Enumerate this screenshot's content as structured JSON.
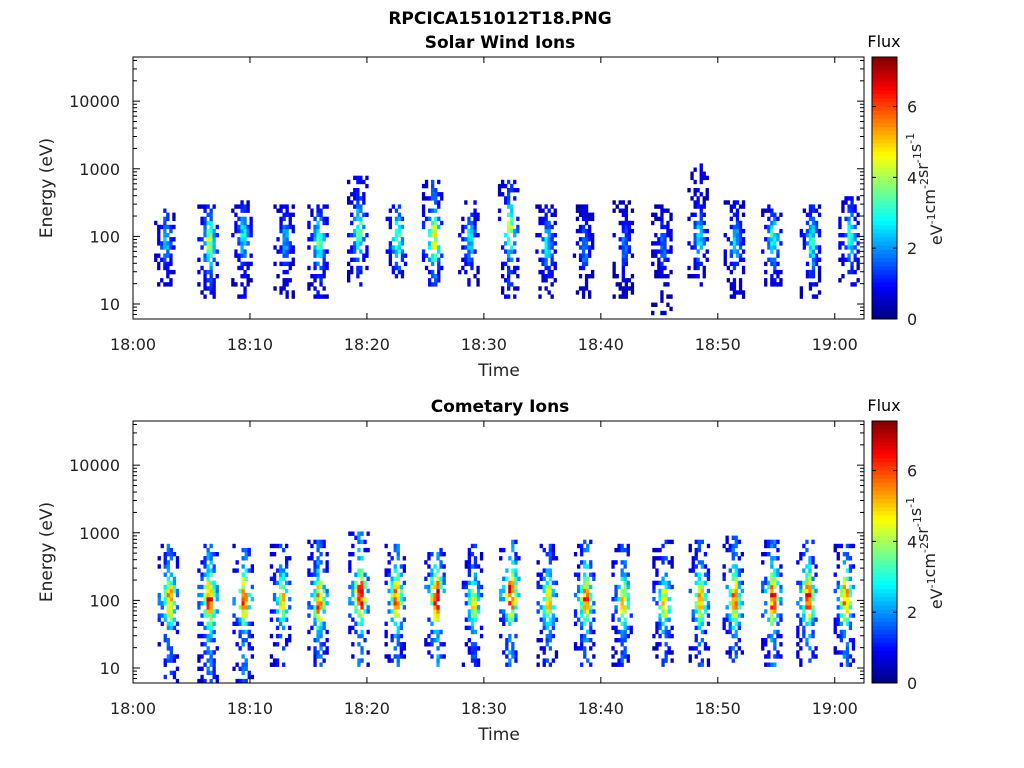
{
  "figure": {
    "title": "RPCICA151012T18.PNG"
  },
  "chart_data": [
    {
      "type": "heatmap",
      "title": "Solar Wind Ions",
      "xlabel": "Time",
      "ylabel": "Energy (eV)",
      "x_ticks": [
        "18:00",
        "18:10",
        "18:20",
        "18:30",
        "18:40",
        "18:50",
        "19:00"
      ],
      "xlim": [
        "18:00",
        "19:02.5"
      ],
      "y_scale": "log",
      "y_ticks": [
        "10",
        "100",
        "1000",
        "10000"
      ],
      "ylim": [
        6,
        45000
      ],
      "colorbar": {
        "label_top": "Flux",
        "units": "eV-1cm-2sr-1s-1",
        "ticks": [
          "0",
          "2",
          "4",
          "6"
        ],
        "range": [
          0,
          7.4
        ],
        "colormap": "jet"
      },
      "bursts": [
        {
          "t": 2.7,
          "lo": 18,
          "hi": 230,
          "peak": 85,
          "p": 2.4
        },
        {
          "t": 6.4,
          "lo": 12,
          "hi": 250,
          "peak": 75,
          "p": 3.9
        },
        {
          "t": 9.3,
          "lo": 12,
          "hi": 290,
          "peak": 95,
          "p": 2.8
        },
        {
          "t": 12.9,
          "lo": 12,
          "hi": 260,
          "peak": 85,
          "p": 2.2
        },
        {
          "t": 15.8,
          "lo": 12,
          "hi": 260,
          "peak": 80,
          "p": 3.3
        },
        {
          "t": 19.2,
          "lo": 18,
          "hi": 700,
          "peak": 110,
          "p": 3.6
        },
        {
          "t": 22.5,
          "lo": 18,
          "hi": 250,
          "peak": 90,
          "p": 3.7
        },
        {
          "t": 25.6,
          "lo": 18,
          "hi": 600,
          "peak": 85,
          "p": 4.7
        },
        {
          "t": 28.7,
          "lo": 18,
          "hi": 320,
          "peak": 85,
          "p": 2.5
        },
        {
          "t": 32.1,
          "lo": 12,
          "hi": 600,
          "peak": 120,
          "p": 4.2
        },
        {
          "t": 35.3,
          "lo": 12,
          "hi": 260,
          "peak": 70,
          "p": 2.6
        },
        {
          "t": 38.5,
          "lo": 12,
          "hi": 250,
          "peak": 65,
          "p": 2.0
        },
        {
          "t": 41.9,
          "lo": 12,
          "hi": 300,
          "peak": 70,
          "p": 1.8
        },
        {
          "t": 45.2,
          "lo": 7,
          "hi": 260,
          "peak": 70,
          "p": 1.8
        },
        {
          "t": 48.3,
          "lo": 18,
          "hi": 1000,
          "peak": 90,
          "p": 2.6
        },
        {
          "t": 51.4,
          "lo": 12,
          "hi": 320,
          "peak": 75,
          "p": 2.5
        },
        {
          "t": 54.6,
          "lo": 18,
          "hi": 260,
          "peak": 85,
          "p": 3.1
        },
        {
          "t": 57.9,
          "lo": 12,
          "hi": 260,
          "peak": 75,
          "p": 3.0
        },
        {
          "t": 61.2,
          "lo": 18,
          "hi": 360,
          "peak": 90,
          "p": 3.0
        }
      ]
    },
    {
      "type": "heatmap",
      "title": "Cometary Ions",
      "xlabel": "Time",
      "ylabel": "Energy (eV)",
      "x_ticks": [
        "18:00",
        "18:10",
        "18:20",
        "18:30",
        "18:40",
        "18:50",
        "19:00"
      ],
      "xlim": [
        "18:00",
        "19:02.5"
      ],
      "y_scale": "log",
      "y_ticks": [
        "10",
        "100",
        "1000",
        "10000"
      ],
      "ylim": [
        6,
        45000
      ],
      "colorbar": {
        "label_top": "Flux",
        "units": "eV-1cm-2sr-1s-1",
        "ticks": [
          "0",
          "2",
          "4",
          "6"
        ],
        "range": [
          0,
          7.4
        ],
        "colormap": "jet"
      },
      "bursts": [
        {
          "t": 3.0,
          "lo": 6,
          "hi": 650,
          "peak": 95,
          "p": 5.8
        },
        {
          "t": 6.4,
          "lo": 6,
          "hi": 650,
          "peak": 95,
          "p": 6.3
        },
        {
          "t": 9.4,
          "lo": 6,
          "hi": 650,
          "peak": 100,
          "p": 6.0
        },
        {
          "t": 12.6,
          "lo": 10,
          "hi": 600,
          "peak": 100,
          "p": 5.0
        },
        {
          "t": 15.8,
          "lo": 10,
          "hi": 700,
          "peak": 90,
          "p": 5.9
        },
        {
          "t": 19.3,
          "lo": 10,
          "hi": 900,
          "peak": 110,
          "p": 6.7
        },
        {
          "t": 22.4,
          "lo": 10,
          "hi": 650,
          "peak": 100,
          "p": 6.0
        },
        {
          "t": 25.8,
          "lo": 10,
          "hi": 600,
          "peak": 100,
          "p": 7.1
        },
        {
          "t": 29.0,
          "lo": 10,
          "hi": 650,
          "peak": 85,
          "p": 4.6
        },
        {
          "t": 32.2,
          "lo": 10,
          "hi": 700,
          "peak": 120,
          "p": 6.9
        },
        {
          "t": 35.4,
          "lo": 10,
          "hi": 650,
          "peak": 90,
          "p": 5.0
        },
        {
          "t": 38.6,
          "lo": 10,
          "hi": 700,
          "peak": 100,
          "p": 6.0
        },
        {
          "t": 41.8,
          "lo": 10,
          "hi": 650,
          "peak": 90,
          "p": 5.0
        },
        {
          "t": 45.3,
          "lo": 10,
          "hi": 700,
          "peak": 90,
          "p": 4.8
        },
        {
          "t": 48.4,
          "lo": 10,
          "hi": 700,
          "peak": 95,
          "p": 5.4
        },
        {
          "t": 51.3,
          "lo": 10,
          "hi": 800,
          "peak": 100,
          "p": 5.7
        },
        {
          "t": 54.6,
          "lo": 10,
          "hi": 700,
          "peak": 100,
          "p": 6.3
        },
        {
          "t": 57.6,
          "lo": 10,
          "hi": 700,
          "peak": 100,
          "p": 6.4
        },
        {
          "t": 60.8,
          "lo": 10,
          "hi": 650,
          "peak": 100,
          "p": 6.0
        }
      ]
    }
  ]
}
